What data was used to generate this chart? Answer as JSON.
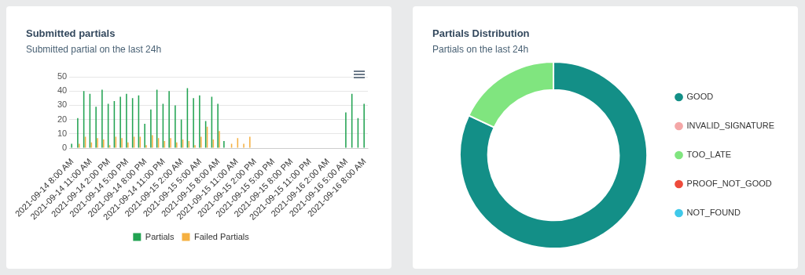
{
  "chart_data": [
    {
      "type": "bar",
      "title": "Submitted partials",
      "subtitle": "Submitted partial on the last 24h",
      "categories": [
        "2021-09-14 8:00 AM",
        null,
        null,
        "2021-09-14 11:00 AM",
        null,
        null,
        "2021-09-14 2:00 PM",
        null,
        null,
        "2021-09-14 5:00 PM",
        null,
        null,
        "2021-09-14 8:00 PM",
        null,
        null,
        "2021-09-14 11:00 PM",
        null,
        null,
        "2021-09-15 2:00 AM",
        null,
        null,
        "2021-09-15 5:00 AM",
        null,
        null,
        "2021-09-15 8:00 AM",
        null,
        null,
        "2021-09-15 11:00 AM",
        null,
        null,
        "2021-09-15 2:00 PM",
        null,
        null,
        "2021-09-15 5:00 PM",
        null,
        null,
        "2021-09-15 8:00 PM",
        null,
        null,
        "2021-09-15 11:00 PM",
        null,
        null,
        "2021-09-16 2:00 AM",
        null,
        null,
        "2021-09-16 5:00 AM",
        null,
        null,
        "2021-09-16 8:00 AM"
      ],
      "series": [
        {
          "name": "Partials",
          "color": "#22a352",
          "values": [
            3,
            21,
            40,
            38,
            29,
            41,
            31,
            33,
            36,
            38,
            35,
            37,
            17,
            27,
            41,
            31,
            40,
            30,
            20,
            42,
            35,
            37,
            19,
            36,
            31,
            5,
            null,
            null,
            null,
            null,
            null,
            null,
            null,
            null,
            null,
            null,
            null,
            null,
            null,
            null,
            null,
            null,
            null,
            null,
            null,
            25,
            38,
            21,
            31
          ]
        },
        {
          "name": "Failed Partials",
          "color": "#f5b041",
          "values": [
            null,
            3,
            8,
            4,
            7,
            6,
            2,
            8,
            7,
            4,
            8,
            8,
            2,
            9,
            7,
            5,
            7,
            4,
            6,
            5,
            2,
            8,
            15,
            6,
            12,
            null,
            3,
            7,
            3,
            8,
            null,
            null,
            null,
            null,
            null,
            null,
            null,
            null,
            null,
            null,
            null,
            null,
            null,
            null,
            null,
            null,
            null,
            null,
            null
          ]
        }
      ],
      "ylim": [
        0,
        50
      ],
      "yticks": [
        0,
        10,
        20,
        30,
        40,
        50
      ],
      "grid": "y",
      "legend": "bottom"
    },
    {
      "type": "donut",
      "title": "Partials Distribution",
      "subtitle": "Partials on the last 24h",
      "categories": [
        "GOOD",
        "INVALID_SIGNATURE",
        "TOO_LATE",
        "PROOF_NOT_GOOD",
        "NOT_FOUND"
      ],
      "values": [
        82,
        0,
        18,
        0,
        0
      ],
      "colors": [
        "#138f87",
        "#f4a7a7",
        "#80e57f",
        "#ee4b3b",
        "#3fc9ea"
      ],
      "legend": "right"
    }
  ]
}
